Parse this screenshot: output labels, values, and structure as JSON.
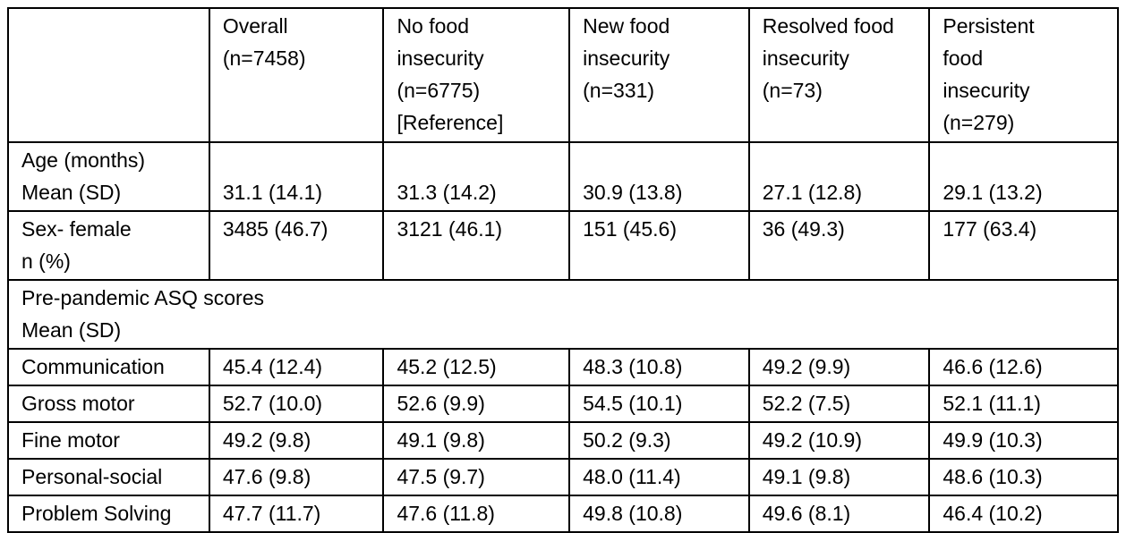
{
  "table": {
    "header": [
      "",
      "Overall\n(n=7458)",
      "No food\ninsecurity\n(n=6775)\n[Reference]",
      "New food\ninsecurity\n(n=331)",
      "Resolved food\ninsecurity\n(n=73)",
      "Persistent\nfood\ninsecurity\n(n=279)"
    ],
    "age_row": {
      "label": "Age (months)\nMean (SD)",
      "values": [
        "31.1 (14.1)",
        "31.3 (14.2)",
        "30.9 (13.8)",
        "27.1 (12.8)",
        "29.1 (13.2)"
      ]
    },
    "sex_row": {
      "label": "Sex- female\nn (%)",
      "values": [
        "3485 (46.7)",
        "3121 (46.1)",
        "151 (45.6)",
        "36 (49.3)",
        "177 (63.4)"
      ]
    },
    "section_label": "Pre-pandemic ASQ scores\nMean (SD)",
    "asq_rows": [
      {
        "label": "Communication",
        "values": [
          "45.4 (12.4)",
          "45.2 (12.5)",
          "48.3 (10.8)",
          "49.2 (9.9)",
          "46.6 (12.6)"
        ]
      },
      {
        "label": "Gross motor",
        "values": [
          "52.7 (10.0)",
          "52.6 (9.9)",
          "54.5 (10.1)",
          "52.2 (7.5)",
          "52.1 (11.1)"
        ]
      },
      {
        "label": "Fine motor",
        "values": [
          "49.2 (9.8)",
          "49.1 (9.8)",
          "50.2 (9.3)",
          "49.2 (10.9)",
          "49.9 (10.3)"
        ]
      },
      {
        "label": "Personal-social",
        "values": [
          "47.6 (9.8)",
          "47.5 (9.7)",
          "48.0 (11.4)",
          "49.1 (9.8)",
          "48.6 (10.3)"
        ]
      },
      {
        "label": "Problem Solving",
        "values": [
          "47.7 (11.7)",
          "47.6 (11.8)",
          "49.8 (10.8)",
          "49.6 (8.1)",
          "46.4 (10.2)"
        ]
      }
    ]
  }
}
